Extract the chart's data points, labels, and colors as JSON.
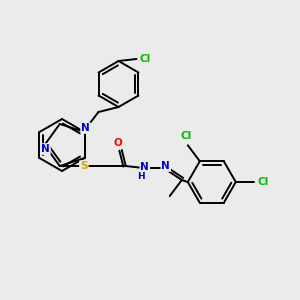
{
  "background_color": "#ebebeb",
  "atom_colors": {
    "C": "#000000",
    "N": "#0000cc",
    "O": "#ff0000",
    "S": "#ccaa00",
    "Cl": "#00bb00",
    "H": "#0000cc"
  },
  "figsize": [
    3.0,
    3.0
  ],
  "dpi": 100
}
